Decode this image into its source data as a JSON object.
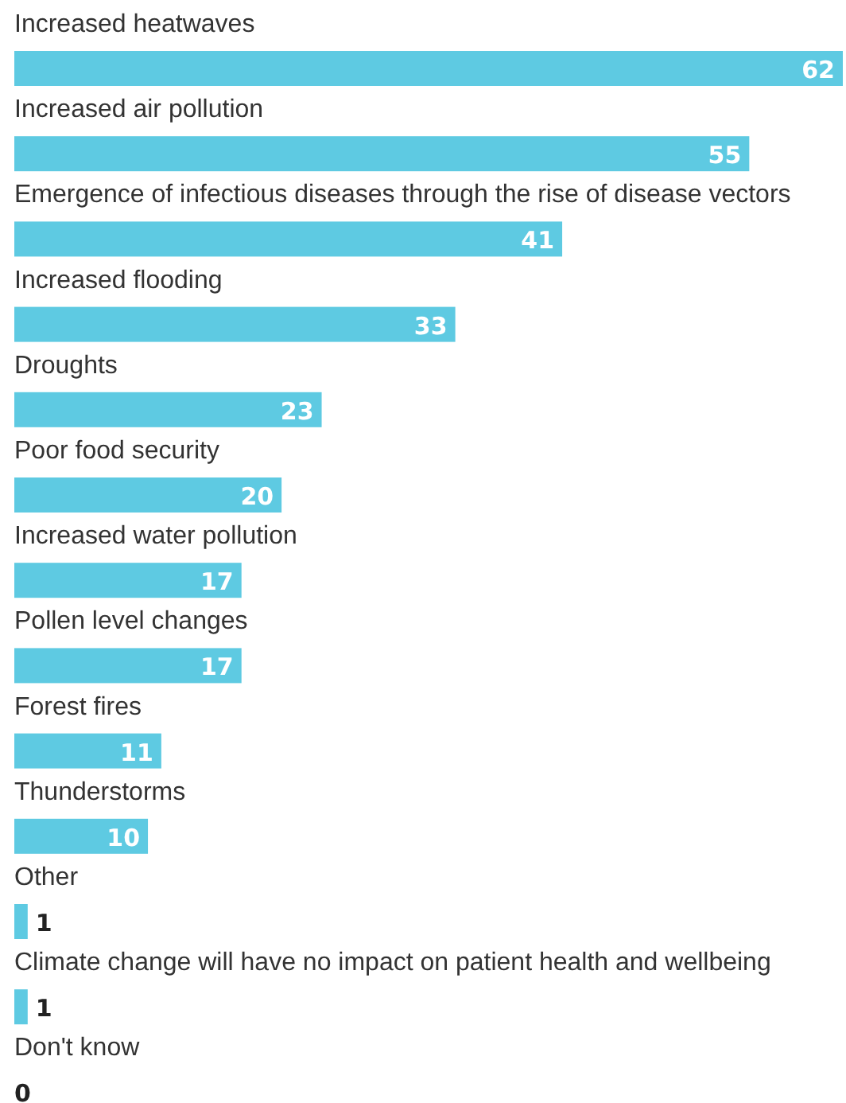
{
  "chart_data": {
    "type": "bar",
    "orientation": "horizontal",
    "categories": [
      "Increased heatwaves",
      "Increased air pollution",
      "Emergence of infectious diseases through the rise of disease vectors",
      "Increased flooding",
      "Droughts",
      "Poor food security",
      "Increased water pollution",
      "Pollen level changes",
      "Forest fires",
      "Thunderstorms",
      "Other",
      "Climate change will have no impact on patient health and wellbeing",
      "Don't know"
    ],
    "values": [
      62,
      55,
      41,
      33,
      23,
      20,
      17,
      17,
      11,
      10,
      1,
      1,
      0
    ],
    "color": "#5ecae2",
    "data_labels": true
  }
}
